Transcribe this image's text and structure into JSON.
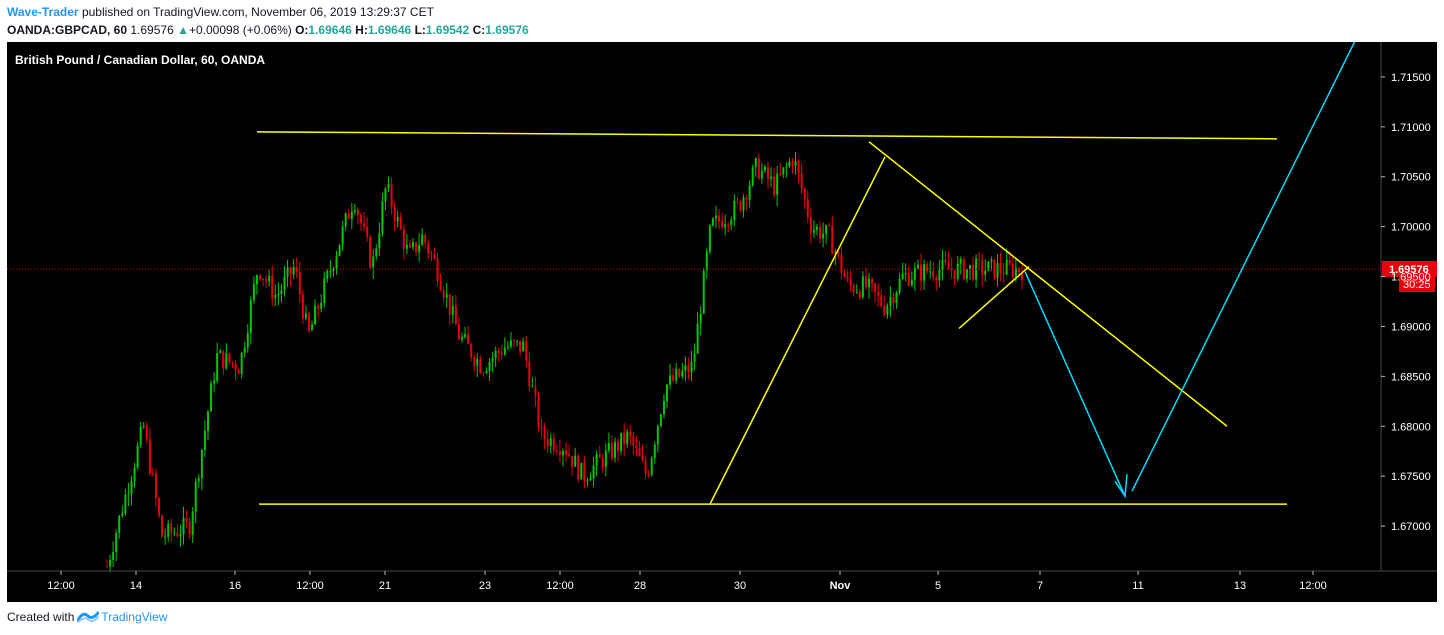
{
  "header": {
    "author": "Wave-Trader",
    "published_text": "published on TradingView.com, November 06, 2019 13:29:37 CET",
    "symbol": "OANDA:GBPCAD, 60",
    "last": "1.69576",
    "change": "+0.00098 (+0.06%)",
    "o_label": "O:",
    "o_value": "1.69646",
    "h_label": "H:",
    "h_value": "1.69646",
    "l_label": "L:",
    "l_value": "1.69542",
    "c_label": "C:",
    "c_value": "1.69576"
  },
  "footer": {
    "created_with": "Created with",
    "brand": "TradingView"
  },
  "colors": {
    "background": "#000000",
    "up": "#00c805",
    "down": "#e8000b",
    "trendline": "#ffff00",
    "arrow": "#00d9ff",
    "price_line": "#e8000b",
    "grid_text": "#ffffff"
  },
  "chart_data": {
    "type": "candlestick",
    "title": "British Pound / Canadian Dollar, 60, OANDA",
    "last_price_label": "1.69576",
    "countdown_label": "30:25",
    "last_price": 1.69576,
    "y_ticks": [
      "1.71500",
      "1.71000",
      "1.70500",
      "1.70000",
      "1.69500",
      "1.69000",
      "1.68500",
      "1.68000",
      "1.67500",
      "1.67000"
    ],
    "y_tick_values": [
      1.715,
      1.71,
      1.705,
      1.7,
      1.695,
      1.69,
      1.685,
      1.68,
      1.675,
      1.67
    ],
    "ylim": [
      1.6655,
      1.7185
    ],
    "x_ticks": [
      "12:00",
      "14",
      "16",
      "12:00",
      "21",
      "23",
      "12:00",
      "28",
      "30",
      "Nov",
      "5",
      "7",
      "11",
      "13",
      "12:00"
    ],
    "x_tick_fractions": [
      0.0,
      1.0,
      2.0,
      3.0,
      4.0,
      5.0,
      6.0,
      7.0,
      8.0,
      9.0,
      10.0,
      11.0,
      12.0,
      13.0,
      14.0
    ],
    "x_tick_positions_index": [
      0,
      1,
      2,
      3,
      4,
      5,
      6,
      7,
      8,
      9,
      10,
      11,
      12,
      13,
      14
    ],
    "price_path": [
      [
        0.0,
        1.666
      ],
      [
        0.04,
        1.68
      ],
      [
        0.06,
        1.669
      ],
      [
        0.09,
        1.67
      ],
      [
        0.12,
        1.687
      ],
      [
        0.145,
        1.686
      ],
      [
        0.165,
        1.696
      ],
      [
        0.185,
        1.693
      ],
      [
        0.205,
        1.696
      ],
      [
        0.22,
        1.689
      ],
      [
        0.245,
        1.696
      ],
      [
        0.27,
        1.703
      ],
      [
        0.29,
        1.696
      ],
      [
        0.305,
        1.704
      ],
      [
        0.33,
        1.697
      ],
      [
        0.345,
        1.699
      ],
      [
        0.36,
        1.696
      ],
      [
        0.385,
        1.689
      ],
      [
        0.41,
        1.686
      ],
      [
        0.435,
        1.688
      ],
      [
        0.455,
        1.688
      ],
      [
        0.475,
        1.679
      ],
      [
        0.5,
        1.678
      ],
      [
        0.52,
        1.675
      ],
      [
        0.545,
        1.677
      ],
      [
        0.57,
        1.679
      ],
      [
        0.59,
        1.675
      ],
      [
        0.61,
        1.684
      ],
      [
        0.64,
        1.686
      ],
      [
        0.66,
        1.7
      ],
      [
        0.69,
        1.702
      ],
      [
        0.71,
        1.706
      ],
      [
        0.73,
        1.704
      ],
      [
        0.75,
        1.707
      ],
      [
        0.77,
        1.7
      ],
      [
        0.79,
        1.699
      ],
      [
        0.81,
        1.694
      ],
      [
        0.83,
        1.694
      ],
      [
        0.85,
        1.692
      ],
      [
        0.87,
        1.695
      ],
      [
        0.9,
        1.6957
      ],
      [
        1.0,
        1.69576
      ]
    ],
    "drawings": {
      "resistance_line": {
        "from_price": 1.7095,
        "to_price": 1.7088
      },
      "support_line": {
        "from_price": 1.6722,
        "to_price": 1.6722
      },
      "falling_trendline": {
        "from_price": 1.7085,
        "to_price": 1.68
      },
      "rising_leg": {
        "from_price": 1.6722,
        "to_price": 1.707
      },
      "small_support": {
        "from_price": 1.6898,
        "to_price": 1.696
      },
      "projection_down": {
        "from_price": 1.6955,
        "to_price": 1.673
      },
      "projection_up": {
        "from_price": 1.6735,
        "to_price": 1.719
      }
    }
  }
}
